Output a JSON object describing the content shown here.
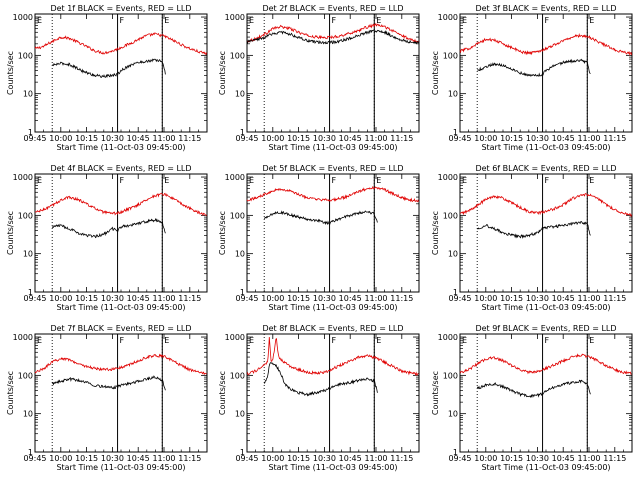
{
  "figure": {
    "xlabel": "Start Time (11-Oct-03 09:45:00)",
    "ylabel": "Counts/sec",
    "x_ticks": [
      "09:45",
      "10:00",
      "10:15",
      "10:30",
      "10:45",
      "11:00",
      "11:15"
    ],
    "x_tick_minutes": [
      0,
      15,
      30,
      45,
      60,
      75,
      90
    ],
    "y_ticks": [
      "1",
      "10",
      "100",
      "1000"
    ],
    "y_tick_values": [
      1,
      10,
      100,
      1000
    ],
    "xlim_minutes": [
      0,
      100
    ],
    "ylim": [
      1,
      1200
    ],
    "marker_labels": [
      "E",
      "F",
      "E"
    ]
  },
  "chart_data": [
    {
      "type": "line",
      "title": "Det 1f BLACK = Events, RED = LLD",
      "markers_minutes": {
        "dotted": [
          10,
          74
        ],
        "solid": [
          48,
          74
        ]
      },
      "series": [
        {
          "name": "LLD",
          "color": "#e00000",
          "x": [
            0,
            5,
            10,
            15,
            20,
            25,
            30,
            35,
            40,
            45,
            50,
            55,
            60,
            65,
            70,
            75,
            80,
            85,
            90,
            95,
            100
          ],
          "values": [
            150,
            170,
            230,
            300,
            280,
            220,
            170,
            130,
            115,
            130,
            160,
            200,
            260,
            330,
            360,
            320,
            250,
            190,
            150,
            125,
            110
          ]
        },
        {
          "name": "Events",
          "color": "#000000",
          "x": [
            10,
            15,
            20,
            25,
            30,
            35,
            40,
            45,
            48,
            50,
            55,
            60,
            65,
            70,
            74,
            76
          ],
          "values": [
            55,
            62,
            58,
            45,
            35,
            30,
            28,
            30,
            32,
            40,
            55,
            65,
            70,
            75,
            70,
            30
          ]
        }
      ]
    },
    {
      "type": "line",
      "title": "Det 2f BLACK = Events, RED = LLD",
      "markers_minutes": {
        "dotted": [
          10,
          74
        ],
        "solid": [
          48,
          74
        ]
      },
      "series": [
        {
          "name": "LLD",
          "color": "#e00000",
          "x": [
            0,
            5,
            10,
            15,
            20,
            25,
            30,
            35,
            40,
            45,
            50,
            55,
            60,
            65,
            70,
            75,
            80,
            85,
            90,
            95,
            100
          ],
          "values": [
            230,
            270,
            350,
            500,
            560,
            500,
            400,
            330,
            300,
            290,
            300,
            330,
            380,
            450,
            550,
            620,
            560,
            430,
            330,
            260,
            230
          ]
        },
        {
          "name": "Events",
          "color": "#000000",
          "x": [
            0,
            5,
            10,
            15,
            20,
            25,
            30,
            35,
            40,
            45,
            50,
            55,
            60,
            65,
            70,
            75,
            80,
            85,
            90,
            95,
            100
          ],
          "values": [
            225,
            250,
            290,
            370,
            400,
            360,
            290,
            240,
            220,
            215,
            220,
            240,
            280,
            330,
            400,
            440,
            400,
            310,
            250,
            220,
            210
          ]
        }
      ]
    },
    {
      "type": "line",
      "title": "Det 3f BLACK = Events, RED = LLD",
      "markers_minutes": {
        "dotted": [
          10,
          74
        ],
        "solid": [
          48,
          74
        ]
      },
      "series": [
        {
          "name": "LLD",
          "color": "#e00000",
          "x": [
            0,
            5,
            10,
            15,
            20,
            25,
            30,
            35,
            40,
            45,
            50,
            55,
            60,
            65,
            70,
            75,
            80,
            85,
            90,
            95,
            100
          ],
          "values": [
            130,
            150,
            200,
            260,
            250,
            200,
            160,
            125,
            115,
            125,
            150,
            190,
            240,
            300,
            330,
            300,
            230,
            180,
            140,
            120,
            110
          ]
        },
        {
          "name": "Events",
          "color": "#000000",
          "x": [
            10,
            15,
            20,
            25,
            30,
            35,
            40,
            45,
            48,
            50,
            55,
            60,
            65,
            70,
            74,
            76
          ],
          "values": [
            40,
            50,
            60,
            55,
            45,
            35,
            30,
            30,
            32,
            40,
            55,
            65,
            70,
            75,
            65,
            28
          ]
        }
      ]
    },
    {
      "type": "line",
      "title": "Det 4f BLACK = Events, RED = LLD",
      "markers_minutes": {
        "dotted": [
          10,
          74
        ],
        "solid": [
          48,
          74
        ]
      },
      "series": [
        {
          "name": "LLD",
          "color": "#e00000",
          "x": [
            0,
            5,
            10,
            15,
            20,
            25,
            30,
            35,
            40,
            45,
            50,
            55,
            60,
            65,
            70,
            75,
            80,
            85,
            90,
            95,
            100
          ],
          "values": [
            120,
            140,
            180,
            250,
            300,
            260,
            200,
            150,
            120,
            110,
            120,
            150,
            190,
            260,
            330,
            360,
            280,
            200,
            150,
            120,
            100
          ]
        },
        {
          "name": "Events",
          "color": "#000000",
          "x": [
            10,
            15,
            20,
            25,
            30,
            35,
            40,
            45,
            48,
            50,
            55,
            60,
            65,
            70,
            74,
            76
          ],
          "values": [
            50,
            55,
            45,
            35,
            30,
            28,
            32,
            45,
            40,
            50,
            55,
            62,
            70,
            75,
            65,
            30
          ]
        }
      ]
    },
    {
      "type": "line",
      "title": "Det 5f BLACK = Events, RED = LLD",
      "markers_minutes": {
        "dotted": [
          10,
          74
        ],
        "solid": [
          48,
          74
        ]
      },
      "series": [
        {
          "name": "LLD",
          "color": "#e00000",
          "x": [
            0,
            5,
            10,
            15,
            20,
            25,
            30,
            35,
            40,
            45,
            50,
            55,
            60,
            65,
            70,
            75,
            80,
            85,
            90,
            95,
            100
          ],
          "values": [
            250,
            280,
            350,
            450,
            480,
            430,
            350,
            290,
            260,
            250,
            255,
            280,
            330,
            420,
            500,
            530,
            470,
            370,
            290,
            250,
            240
          ]
        },
        {
          "name": "Events",
          "color": "#000000",
          "x": [
            10,
            15,
            20,
            25,
            30,
            35,
            40,
            45,
            48,
            50,
            55,
            60,
            65,
            70,
            74,
            76
          ],
          "values": [
            80,
            110,
            120,
            105,
            90,
            80,
            75,
            65,
            62,
            70,
            85,
            100,
            115,
            125,
            110,
            60
          ]
        }
      ]
    },
    {
      "type": "line",
      "title": "Det 6f BLACK = Events, RED = LLD",
      "markers_minutes": {
        "dotted": [
          10,
          74
        ],
        "solid": [
          48,
          74
        ]
      },
      "series": [
        {
          "name": "LLD",
          "color": "#e00000",
          "x": [
            0,
            5,
            10,
            15,
            20,
            25,
            30,
            35,
            40,
            45,
            50,
            55,
            60,
            65,
            70,
            75,
            80,
            85,
            90,
            95,
            100
          ],
          "values": [
            110,
            130,
            180,
            260,
            320,
            280,
            210,
            160,
            125,
            115,
            125,
            150,
            190,
            270,
            330,
            350,
            270,
            190,
            140,
            115,
            100
          ]
        },
        {
          "name": "Events",
          "color": "#000000",
          "x": [
            10,
            15,
            20,
            25,
            30,
            35,
            40,
            45,
            48,
            50,
            55,
            60,
            65,
            70,
            74,
            76
          ],
          "values": [
            45,
            55,
            45,
            35,
            30,
            28,
            30,
            35,
            45,
            48,
            50,
            55,
            60,
            65,
            60,
            28
          ]
        }
      ]
    },
    {
      "type": "line",
      "title": "Det 7f BLACK = Events, RED = LLD",
      "markers_minutes": {
        "dotted": [
          10,
          74
        ],
        "solid": [
          48,
          74
        ]
      },
      "series": [
        {
          "name": "LLD",
          "color": "#e00000",
          "x": [
            0,
            5,
            10,
            15,
            20,
            25,
            30,
            35,
            40,
            45,
            50,
            55,
            60,
            65,
            70,
            75,
            80,
            85,
            90,
            95,
            100
          ],
          "values": [
            120,
            150,
            220,
            280,
            260,
            200,
            170,
            150,
            140,
            145,
            160,
            190,
            240,
            300,
            330,
            310,
            240,
            180,
            140,
            120,
            110
          ]
        },
        {
          "name": "Events",
          "color": "#000000",
          "x": [
            10,
            15,
            20,
            25,
            30,
            35,
            40,
            45,
            48,
            50,
            55,
            60,
            65,
            70,
            74,
            76
          ],
          "values": [
            60,
            70,
            80,
            75,
            65,
            55,
            50,
            48,
            50,
            55,
            62,
            70,
            80,
            90,
            75,
            40
          ]
        }
      ]
    },
    {
      "type": "line",
      "title": "Det 8f BLACK = Events, RED = LLD",
      "markers_minutes": {
        "dotted": [
          10,
          74
        ],
        "solid": [
          48,
          74
        ]
      },
      "series": [
        {
          "name": "LLD",
          "color": "#e00000",
          "x": [
            0,
            5,
            10,
            12,
            13,
            14,
            15,
            17,
            18,
            19,
            20,
            22,
            25,
            30,
            35,
            40,
            45,
            50,
            55,
            60,
            65,
            70,
            75,
            80,
            85,
            90,
            95,
            100
          ],
          "values": [
            110,
            130,
            180,
            220,
            1000,
            220,
            250,
            1000,
            400,
            280,
            250,
            220,
            170,
            140,
            120,
            115,
            120,
            150,
            190,
            240,
            300,
            320,
            290,
            220,
            170,
            130,
            115,
            105
          ]
        },
        {
          "name": "Events",
          "color": "#000000",
          "x": [
            10,
            12,
            13,
            15,
            17,
            18,
            20,
            22,
            25,
            30,
            35,
            40,
            45,
            48,
            50,
            55,
            60,
            65,
            70,
            74,
            76
          ],
          "values": [
            60,
            90,
            200,
            210,
            180,
            150,
            100,
            60,
            45,
            35,
            32,
            35,
            40,
            45,
            50,
            60,
            65,
            75,
            80,
            70,
            35
          ]
        }
      ]
    },
    {
      "type": "line",
      "title": "Det 9f BLACK = Events, RED = LLD",
      "markers_minutes": {
        "dotted": [
          10,
          74
        ],
        "solid": [
          48,
          74
        ]
      },
      "series": [
        {
          "name": "LLD",
          "color": "#e00000",
          "x": [
            0,
            5,
            10,
            15,
            20,
            25,
            30,
            35,
            40,
            45,
            50,
            55,
            60,
            65,
            70,
            75,
            80,
            85,
            90,
            95,
            100
          ],
          "values": [
            120,
            140,
            200,
            270,
            290,
            240,
            180,
            140,
            120,
            125,
            150,
            190,
            240,
            300,
            340,
            310,
            240,
            180,
            140,
            120,
            110
          ]
        },
        {
          "name": "Events",
          "color": "#000000",
          "x": [
            10,
            15,
            20,
            25,
            30,
            35,
            40,
            45,
            48,
            50,
            55,
            60,
            65,
            70,
            74,
            76
          ],
          "values": [
            45,
            55,
            60,
            50,
            40,
            32,
            28,
            30,
            33,
            40,
            50,
            58,
            65,
            70,
            60,
            28
          ]
        }
      ]
    }
  ]
}
